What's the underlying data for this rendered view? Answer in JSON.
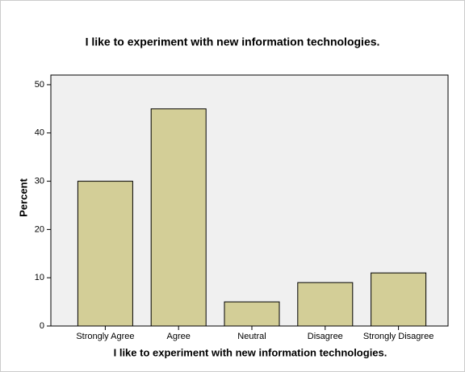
{
  "chart_data": {
    "type": "bar",
    "title": "I like to experiment with new information technologies.",
    "x_label": "I like to experiment with new information technologies.",
    "y_label": "Percent",
    "categories": [
      "Strongly Agree",
      "Agree",
      "Neutral",
      "Disagree",
      "Strongly Disagree"
    ],
    "values": [
      30,
      45,
      5,
      9,
      11
    ],
    "color": "#d3ce97",
    "ylim": [
      0,
      52
    ],
    "yticks": [
      0,
      10,
      20,
      30,
      40,
      50
    ],
    "grid": false
  }
}
